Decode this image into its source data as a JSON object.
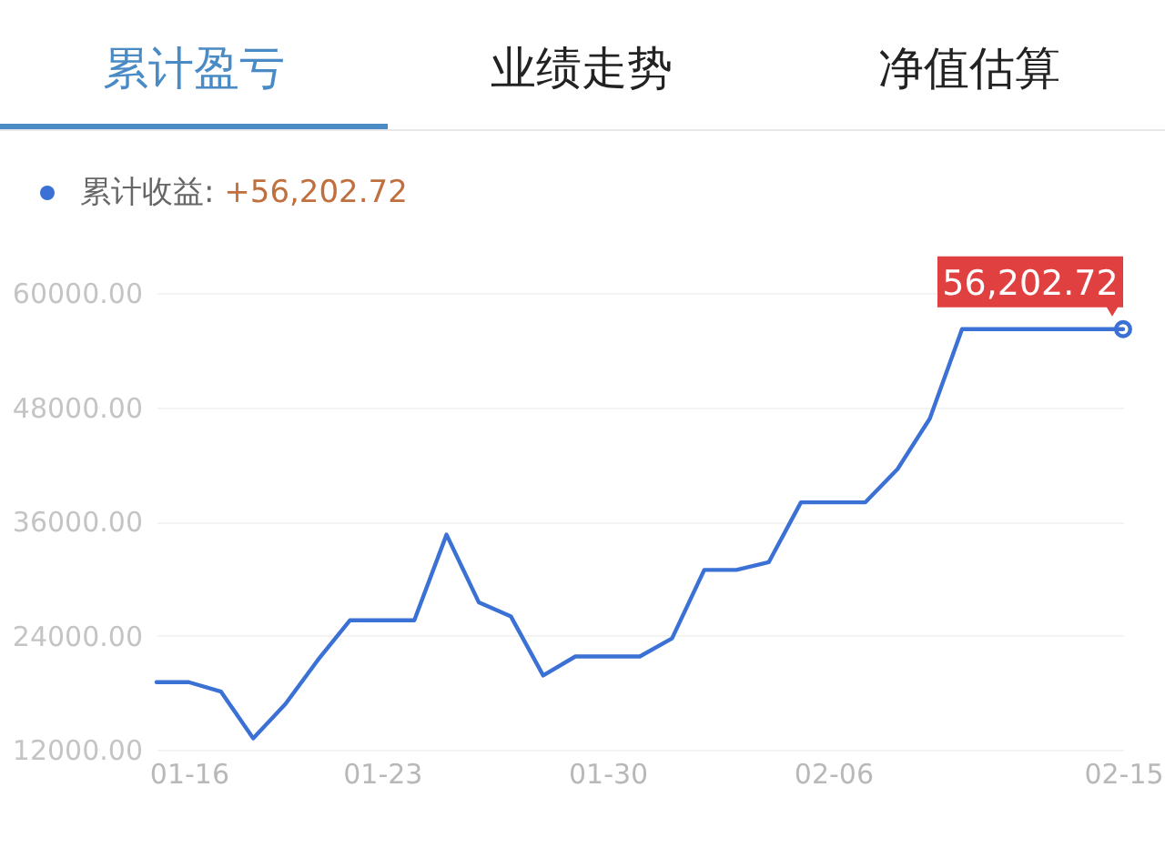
{
  "chart_data": {
    "type": "line",
    "annotations": [
      "累计盈亏",
      "业绩走势",
      "净值估算",
      "+56,202.72"
    ],
    "categories": [
      null,
      "01-16",
      null,
      null,
      null,
      null,
      null,
      "01-23",
      null,
      null,
      null,
      null,
      null,
      null,
      "01-30",
      null,
      null,
      null,
      null,
      null,
      null,
      "02-06",
      null,
      null,
      null,
      null,
      null,
      null,
      null,
      null,
      "02-15"
    ],
    "series": [
      {
        "name": "累计收益:",
        "color": "#3b70d4",
        "values": [
          19100,
          19100,
          18100,
          13200,
          16800,
          21400,
          25600,
          25600,
          25600,
          34600,
          27500,
          26000,
          19800,
          21800,
          21800,
          21800,
          23700,
          30900,
          30900,
          31700,
          38000,
          38000,
          38000,
          41500,
          46800,
          56202.72,
          56202.72,
          56202.72,
          56202.72,
          56202.72,
          56202.72
        ],
        "value_labels": [
          null,
          null,
          null,
          null,
          null,
          null,
          null,
          null,
          null,
          null,
          null,
          null,
          null,
          null,
          null,
          null,
          null,
          null,
          null,
          null,
          null,
          null,
          null,
          null,
          null,
          null,
          null,
          null,
          null,
          null,
          "56,202.72"
        ]
      }
    ],
    "ylim": [
      12000,
      60000
    ],
    "yticks": [
      {
        "value": 12000,
        "label": "12000.00"
      },
      {
        "value": 24000,
        "label": "24000.00"
      },
      {
        "value": 36000,
        "label": "36000.00"
      },
      {
        "value": 48000,
        "label": "48000.00"
      },
      {
        "value": 60000,
        "label": "60000.00"
      }
    ],
    "grid": "y",
    "legend": "top left"
  }
}
